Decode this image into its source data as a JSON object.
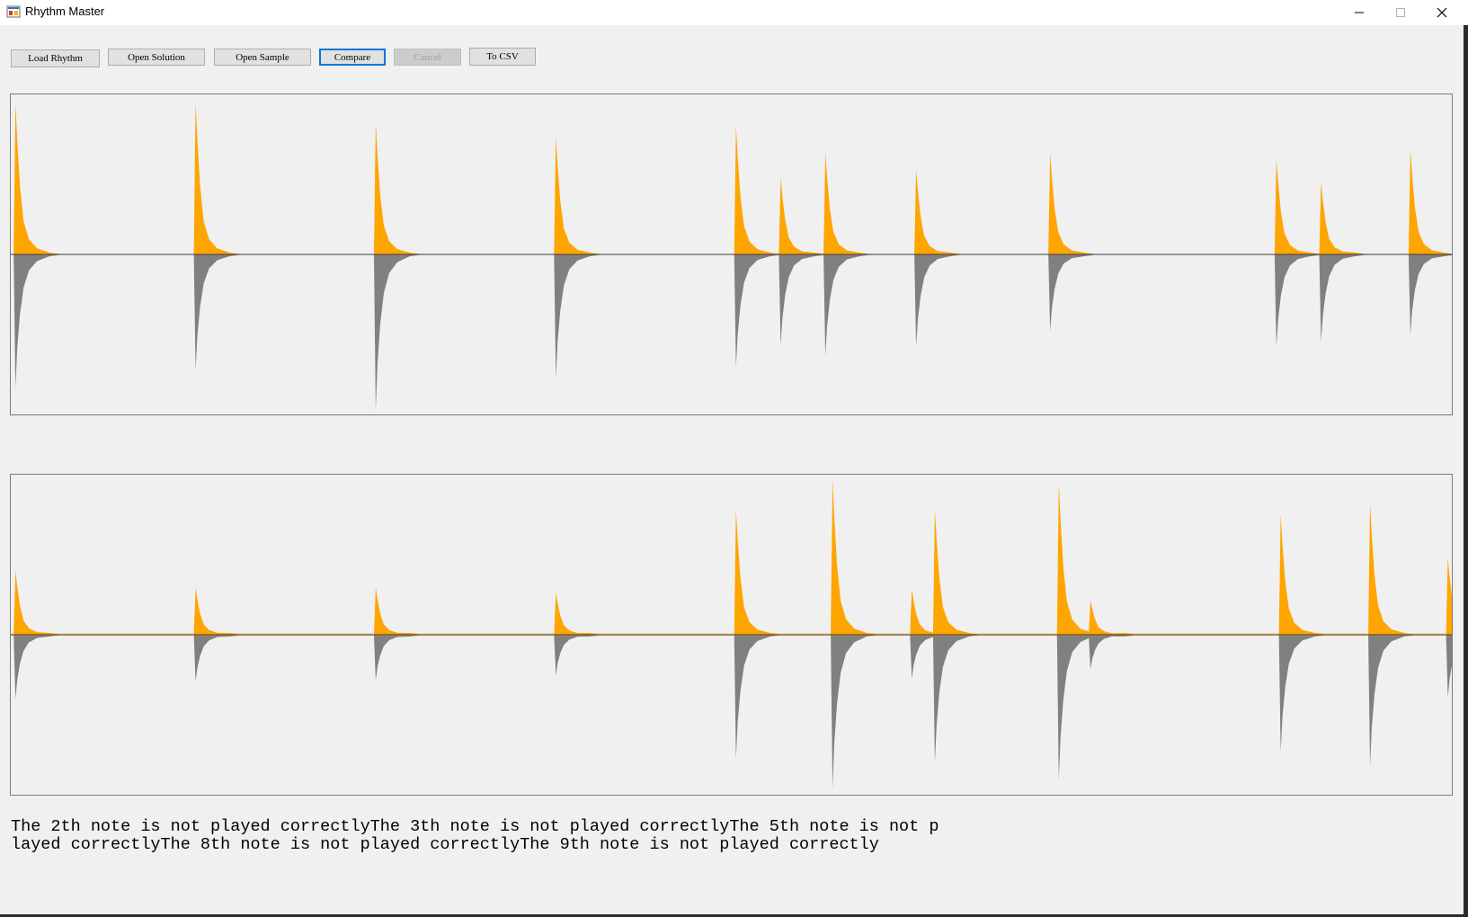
{
  "window": {
    "title": "Rhythm Master",
    "icon": "app-icon",
    "controls": [
      "minimize-icon",
      "maximize-icon",
      "close-icon"
    ]
  },
  "toolbar": {
    "load_rhythm": "Load Rhythm",
    "open_solution": "Open Solution",
    "open_sample": "Open Sample",
    "compare": "Compare",
    "cancel": "Cancel",
    "to_csv": "To CSV"
  },
  "colors": {
    "positive": "#ffa500",
    "negative": "#808080",
    "axis": "#3c3c3c"
  },
  "chart_data": [
    {
      "type": "area",
      "series": [
        {
          "name": "",
          "peaks": [
            {
              "x": 0.002,
              "up": 0.97,
              "down": 0.85
            },
            {
              "x": 0.127,
              "up": 0.97,
              "down": 0.74
            },
            {
              "x": 0.252,
              "up": 0.84,
              "down": 0.99
            },
            {
              "x": 0.377,
              "up": 0.75,
              "down": 0.79
            },
            {
              "x": 0.502,
              "up": 0.82,
              "down": 0.72
            },
            {
              "x": 0.533,
              "up": 0.49,
              "down": 0.58
            },
            {
              "x": 0.564,
              "up": 0.65,
              "down": 0.65
            },
            {
              "x": 0.627,
              "up": 0.54,
              "down": 0.59
            },
            {
              "x": 0.72,
              "up": 0.65,
              "down": 0.49
            },
            {
              "x": 0.877,
              "up": 0.61,
              "down": 0.59
            },
            {
              "x": 0.908,
              "up": 0.46,
              "down": 0.56
            },
            {
              "x": 0.97,
              "up": 0.67,
              "down": 0.51
            }
          ]
        }
      ]
    },
    {
      "type": "area",
      "series": [
        {
          "name": "",
          "peaks": [
            {
              "x": 0.002,
              "up": 0.41,
              "down": 0.41
            },
            {
              "x": 0.127,
              "up": 0.3,
              "down": 0.3
            },
            {
              "x": 0.252,
              "up": 0.3,
              "down": 0.29
            },
            {
              "x": 0.377,
              "up": 0.27,
              "down": 0.26
            },
            {
              "x": 0.502,
              "up": 0.8,
              "down": 0.79
            },
            {
              "x": 0.569,
              "up": 0.99,
              "down": 0.98
            },
            {
              "x": 0.624,
              "up": 0.29,
              "down": 0.28
            },
            {
              "x": 0.64,
              "up": 0.8,
              "down": 0.82
            },
            {
              "x": 0.726,
              "up": 0.97,
              "down": 0.93
            },
            {
              "x": 0.748,
              "up": 0.22,
              "down": 0.22
            },
            {
              "x": 0.88,
              "up": 0.77,
              "down": 0.75
            },
            {
              "x": 0.942,
              "up": 0.84,
              "down": 0.84
            },
            {
              "x": 0.996,
              "up": 0.49,
              "down": 0.4
            }
          ]
        }
      ]
    }
  ],
  "result_text": "The 2th note is not played correctlyThe 3th note is not played correctlyThe 5th note is not played correctlyThe 8th note is not played correctlyThe 9th note is not played correctly"
}
